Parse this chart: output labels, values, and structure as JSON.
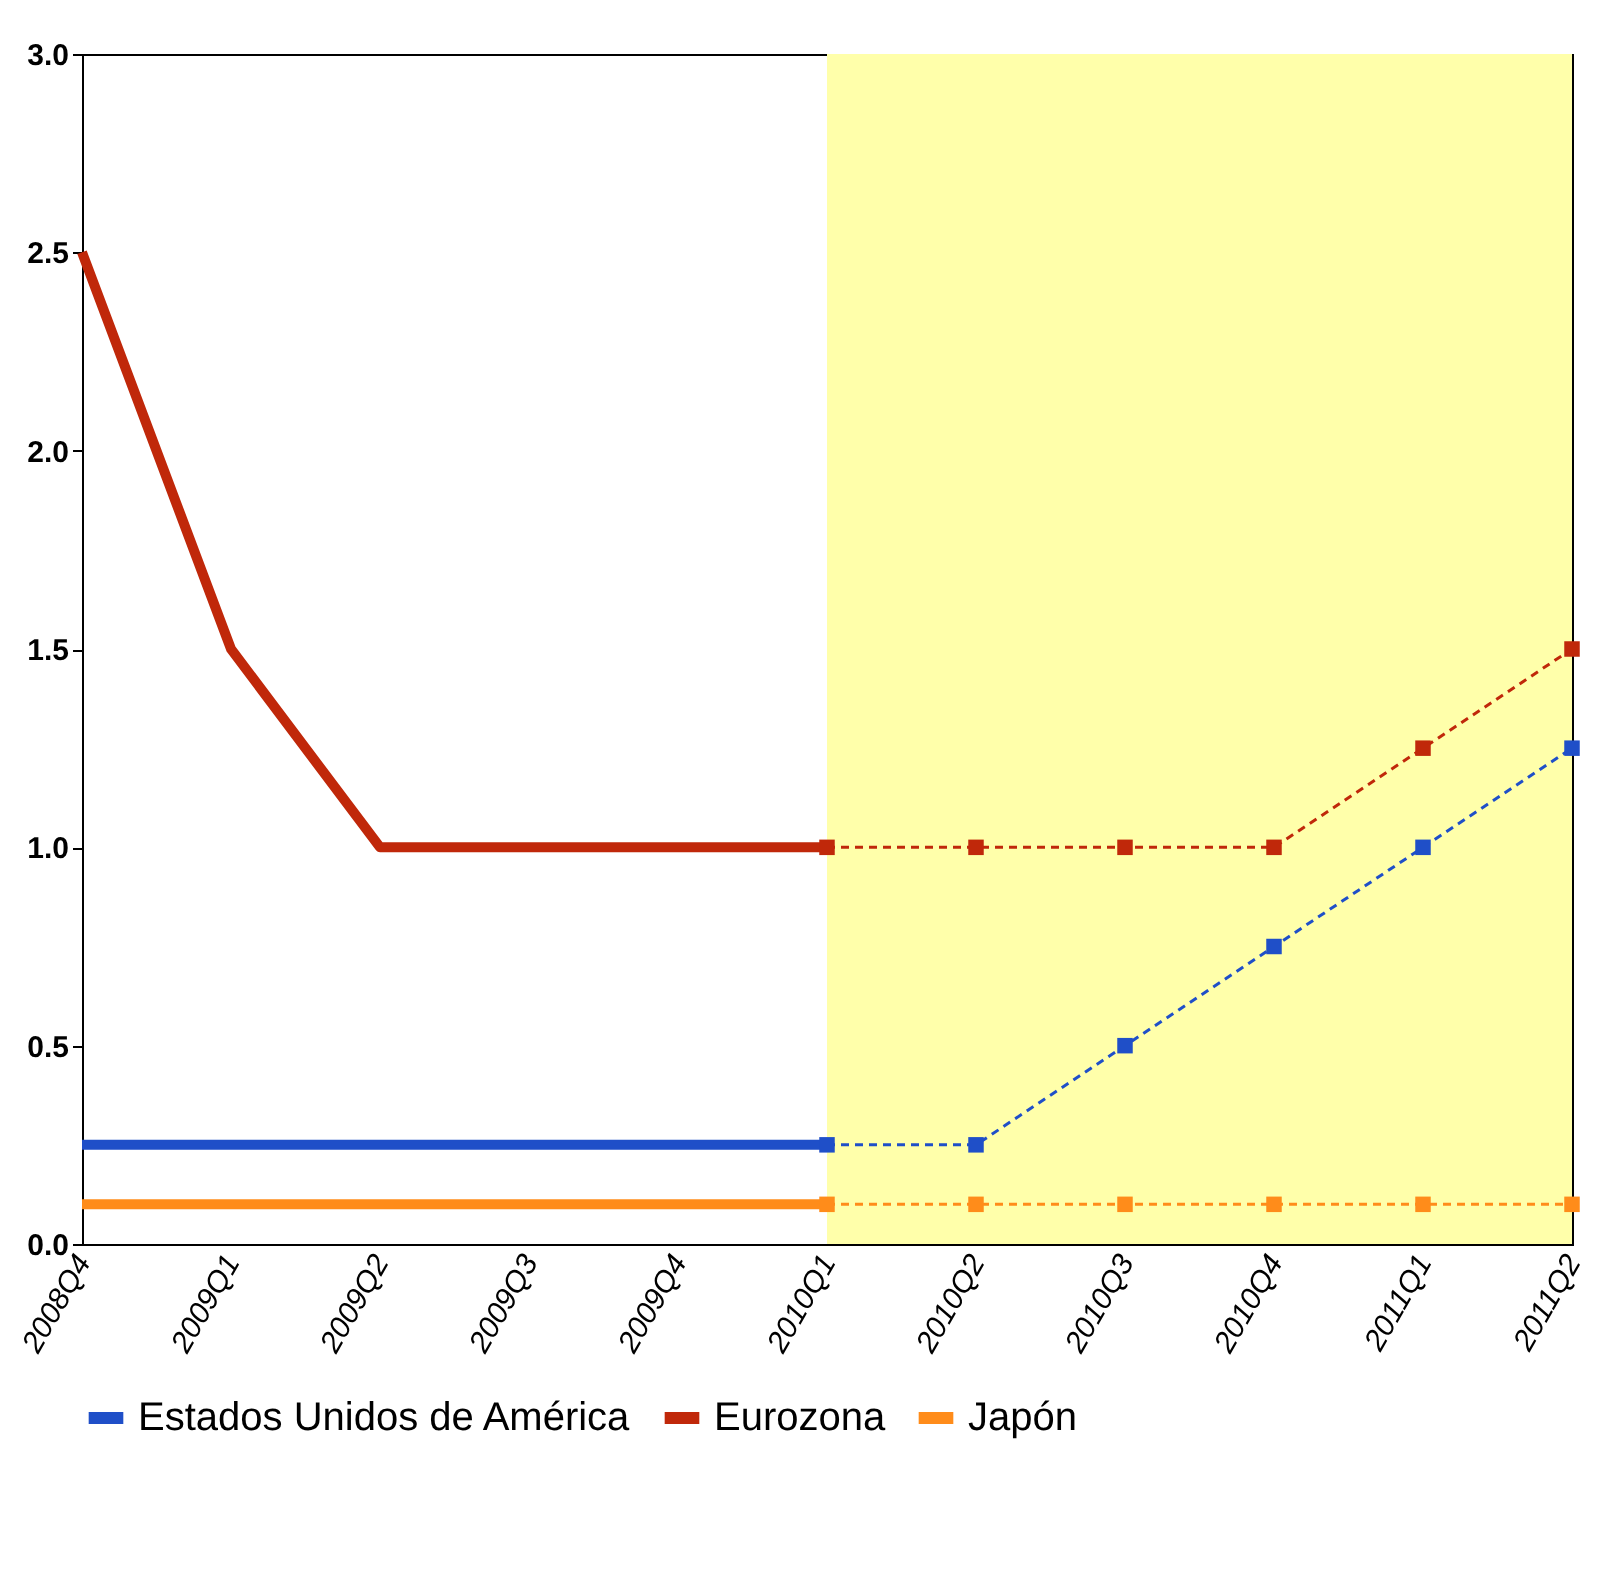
{
  "chart_data": {
    "type": "line",
    "categories": [
      "2008Q4",
      "2009Q1",
      "2009Q2",
      "2009Q3",
      "2009Q4",
      "2010Q1",
      "2010Q2",
      "2010Q3",
      "2010Q4",
      "2011Q1",
      "2011Q2"
    ],
    "series": [
      {
        "name": "Estados Unidos de América",
        "color": "#1f4fc8",
        "line_style": "solid",
        "values": [
          0.25,
          0.25,
          0.25,
          0.25,
          0.25,
          0.25,
          null,
          null,
          null,
          null,
          null
        ]
      },
      {
        "name": "Eurozona",
        "color": "#c0280a",
        "line_style": "solid",
        "values": [
          2.5,
          1.5,
          1.0,
          1.0,
          1.0,
          1.0,
          null,
          null,
          null,
          null,
          null
        ]
      },
      {
        "name": "Japón",
        "color": "#ff8c1a",
        "line_style": "solid",
        "values": [
          0.1,
          0.1,
          0.1,
          0.1,
          0.1,
          0.1,
          null,
          null,
          null,
          null,
          null
        ]
      },
      {
        "color": "#1f4fc8",
        "line_style": "dashed",
        "marker": "square",
        "values": [
          null,
          null,
          null,
          null,
          null,
          0.25,
          0.25,
          0.5,
          0.75,
          1.0,
          1.25
        ]
      },
      {
        "color": "#c0280a",
        "line_style": "dashed",
        "marker": "square",
        "values": [
          null,
          null,
          null,
          null,
          null,
          1.0,
          1.0,
          1.0,
          1.0,
          1.25,
          1.5
        ]
      },
      {
        "color": "#ff8c1a",
        "line_style": "dashed",
        "marker": "square",
        "values": [
          null,
          null,
          null,
          null,
          null,
          0.1,
          0.1,
          0.1,
          0.1,
          0.1,
          0.1
        ]
      }
    ],
    "ylim": [
      0,
      3
    ],
    "yticks": [
      {
        "value": 0,
        "label": "0.0"
      },
      {
        "value": 0.5,
        "label": "0.5"
      },
      {
        "value": 1,
        "label": "1.0"
      },
      {
        "value": 1.5,
        "label": "1.5"
      },
      {
        "value": 2,
        "label": "2.0"
      },
      {
        "value": 2.5,
        "label": "2.5"
      },
      {
        "value": 3,
        "label": "3.0"
      }
    ],
    "bands": [
      {
        "axis": "x",
        "from": "2010Q1",
        "to": "2011Q2",
        "color": "#ffffaa"
      }
    ],
    "legend": "bottom"
  }
}
